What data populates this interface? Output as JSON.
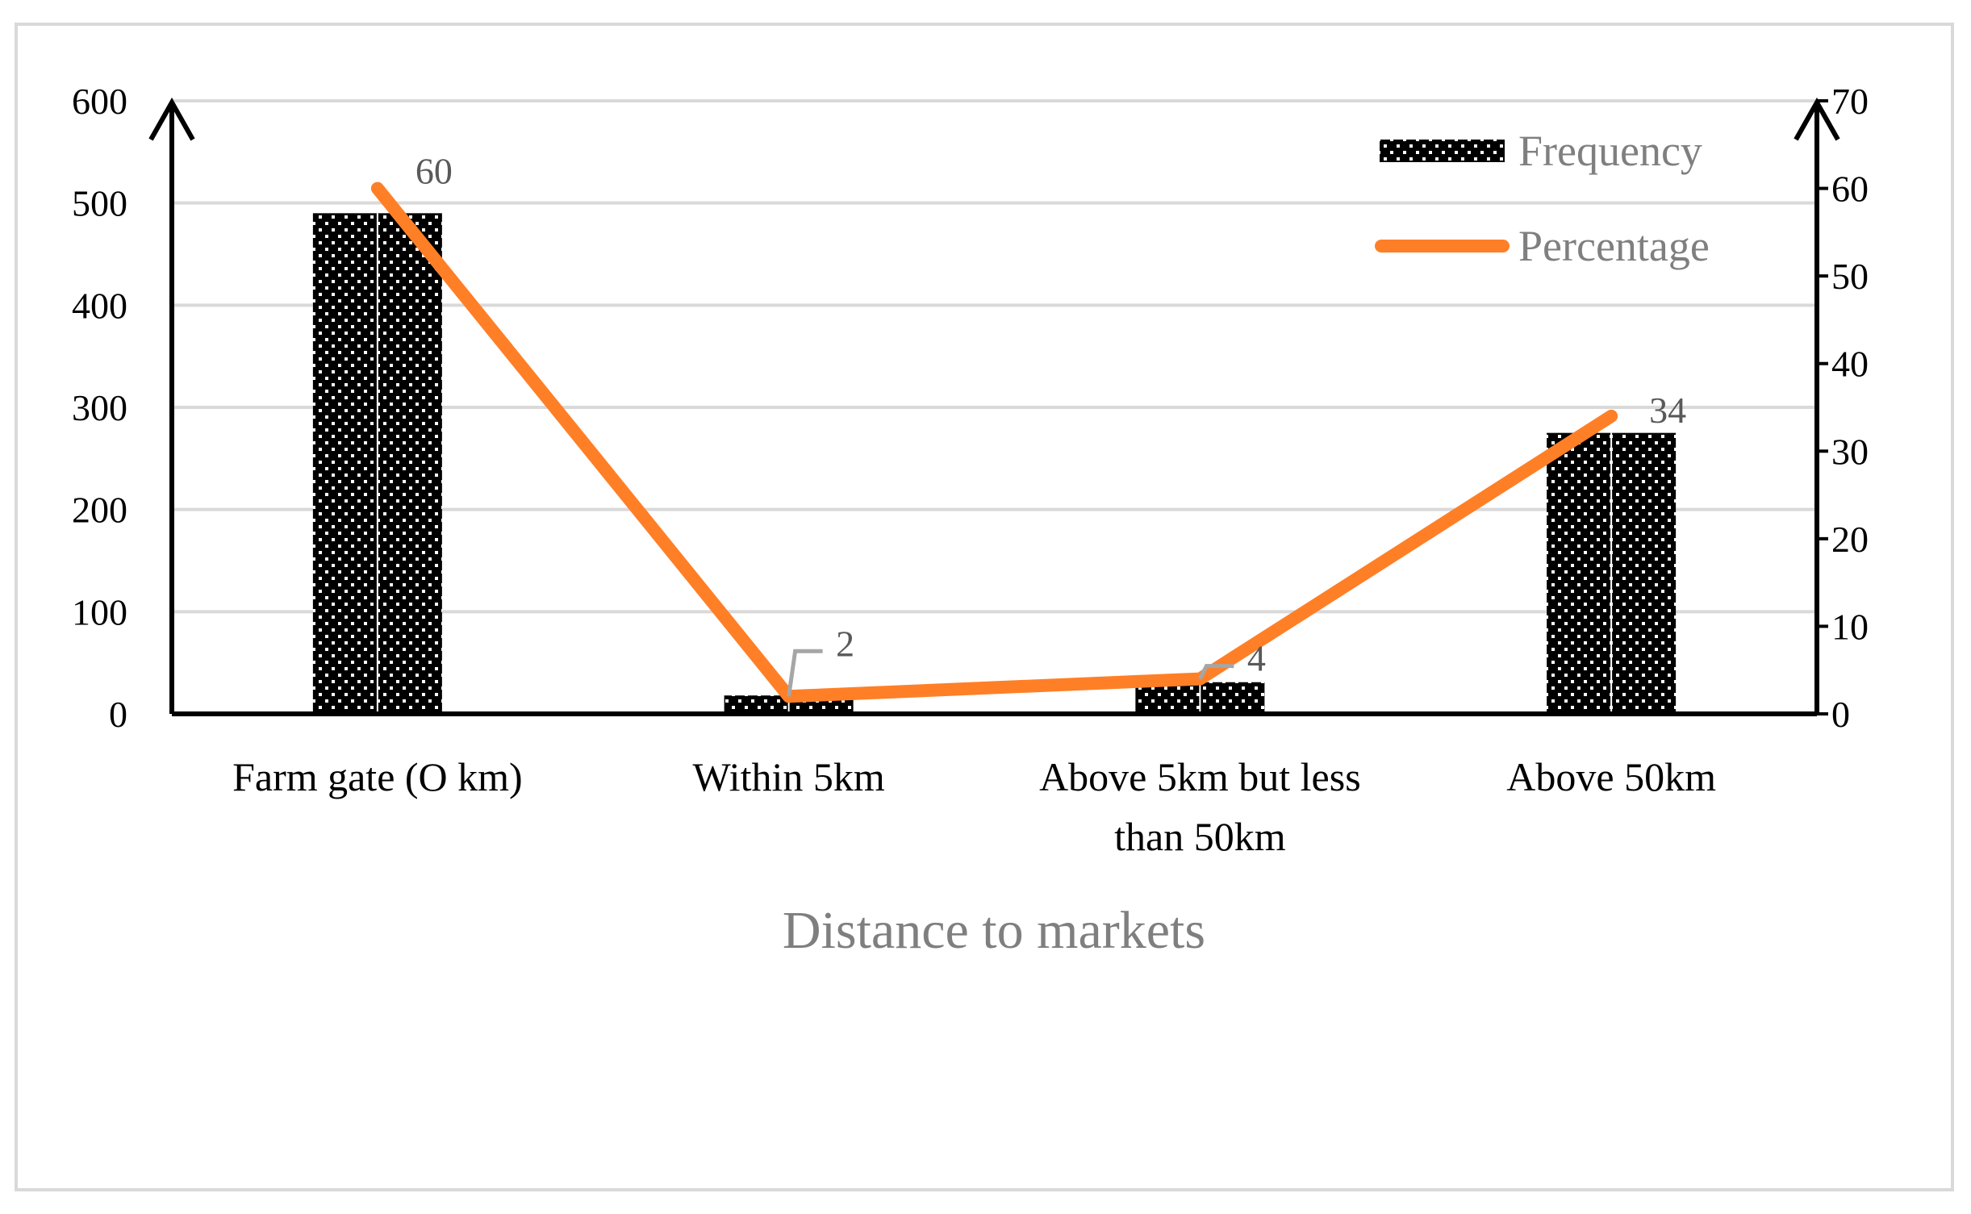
{
  "chart_data": {
    "type": "bar",
    "title": "",
    "xlabel": "Distance  to markets",
    "ylabel": "",
    "ylabel_right": "",
    "categories": [
      [
        "Farm gate (O km)"
      ],
      [
        "Within 5km"
      ],
      [
        "Above 5km but less",
        "than 50km"
      ],
      [
        "Above 50km"
      ]
    ],
    "series": [
      {
        "name": "Frequency",
        "type": "bar",
        "axis": "left",
        "values": [
          490,
          18,
          31,
          275
        ],
        "color": "#000000",
        "pattern": "dotted"
      },
      {
        "name": "Percentage",
        "type": "line",
        "axis": "right",
        "values": [
          60,
          2,
          4,
          34
        ],
        "data_labels": [
          "60",
          "2",
          "4",
          "34"
        ],
        "color": "#ff7f27"
      }
    ],
    "ylim_left": [
      0,
      600
    ],
    "yticks_left": [
      "0",
      "100",
      "200",
      "300",
      "400",
      "500",
      "600"
    ],
    "ylim_right": [
      0,
      70
    ],
    "yticks_right": [
      "0",
      "10",
      "20",
      "30",
      "40",
      "50",
      "60",
      "70"
    ],
    "grid": true,
    "legend_position": "top-right",
    "colors": {
      "grid": "#d9d9d9",
      "axis": "#000000",
      "frame": "#d9d9d9",
      "data_label": "#595959",
      "callout": "#a6a6a6",
      "line": "#ff7f27"
    }
  }
}
